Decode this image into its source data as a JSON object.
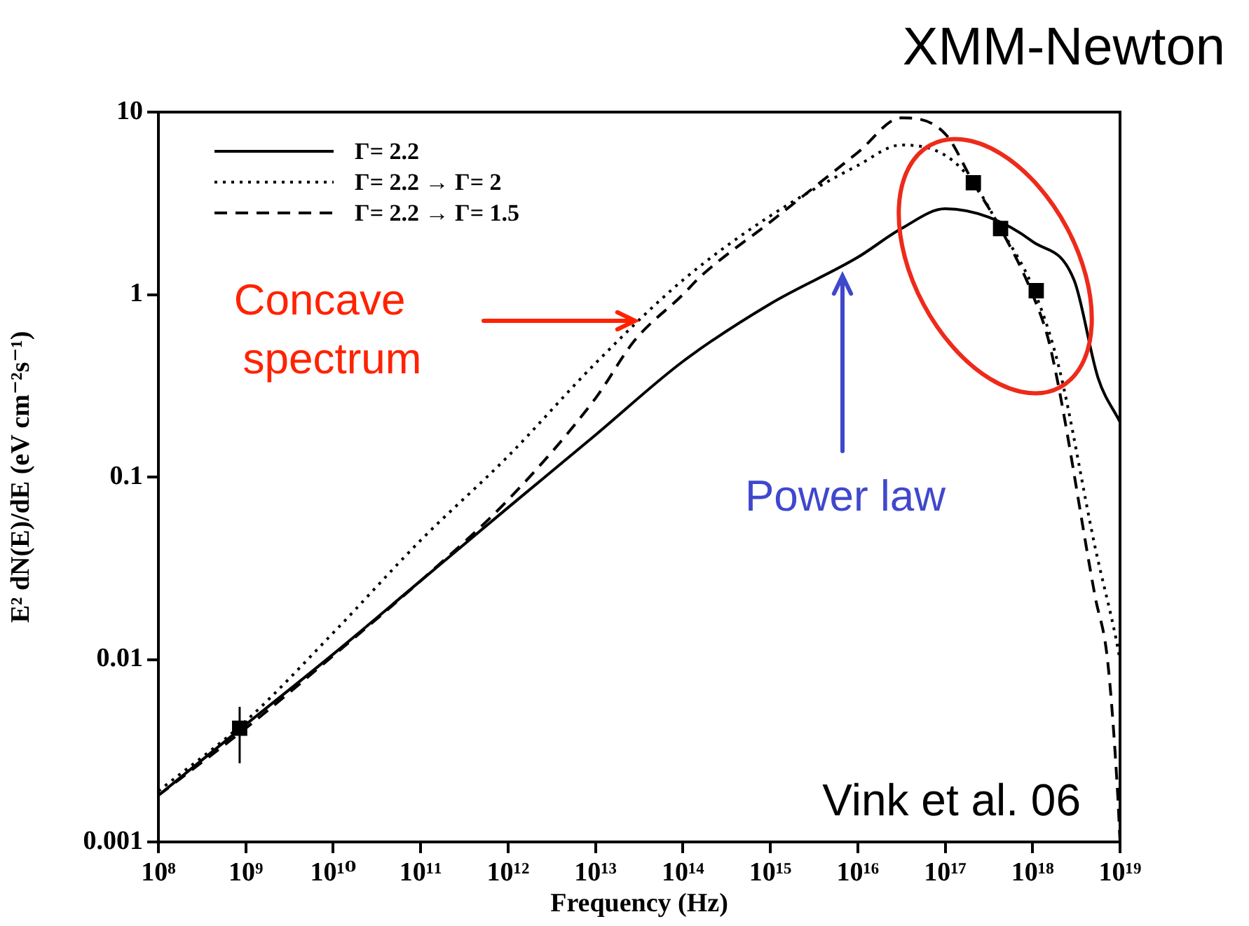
{
  "chart_data": {
    "type": "line",
    "title": "XMM-Newton",
    "xlabel": "Frequency (Hz)",
    "ylabel": "E² dN(E)/dE (eV cm⁻²s⁻¹)",
    "log": "xy",
    "grid": false,
    "legend": "top left",
    "xlim": [
      100000000.0,
      1e+19
    ],
    "ylim": [
      0.001,
      10
    ],
    "xticks": [
      {
        "value": 100000000.0,
        "label": "10⁸"
      },
      {
        "value": 1000000000.0,
        "label": "10⁹"
      },
      {
        "value": 10000000000.0,
        "label": "10¹⁰"
      },
      {
        "value": 100000000000.0,
        "label": "10¹¹"
      },
      {
        "value": 1000000000000.0,
        "label": "10¹²"
      },
      {
        "value": 10000000000000.0,
        "label": "10¹³"
      },
      {
        "value": 100000000000000.0,
        "label": "10¹⁴"
      },
      {
        "value": 1000000000000000.0,
        "label": "10¹⁵"
      },
      {
        "value": 1e+16,
        "label": "10¹⁶"
      },
      {
        "value": 1e+17,
        "label": "10¹⁷"
      },
      {
        "value": 1e+18,
        "label": "10¹⁸"
      },
      {
        "value": 1e+19,
        "label": "10¹⁹"
      }
    ],
    "yticks": [
      0.001,
      0.01,
      0.1,
      1,
      10
    ],
    "series": [
      {
        "name": "Γ= 2.2",
        "color": "#000000",
        "line_style": "solid",
        "marker": "none",
        "x": [
          100000000.0,
          1000000000.0,
          10000000000.0,
          100000000000.0,
          1000000000000.0,
          10000000000000.0,
          100000000000000.0,
          1000000000000000.0,
          1e+16,
          3.16e+16,
          1e+17,
          3.16e+17,
          1e+18,
          3e+18,
          5.6e+18,
          1e+19
        ],
        "values": [
          0.0018,
          0.0044,
          0.0107,
          0.027,
          0.068,
          0.17,
          0.43,
          0.89,
          1.6,
          2.3,
          2.95,
          2.65,
          1.95,
          1.19,
          0.35,
          0.2
        ]
      },
      {
        "name": "Γ= 2.2 → Γ= 2",
        "color": "#000000",
        "line_style": "dotted",
        "marker": "none",
        "x": [
          100000000.0,
          1000000000.0,
          10000000000.0,
          100000000000.0,
          1000000000000.0,
          10000000000000.0,
          100000000000000.0,
          1000000000000000.0,
          1e+16,
          3.16e+16,
          1e+17,
          2.1e+17,
          4.3e+17,
          1e+18,
          2e+18,
          5.2e+18,
          9e+18,
          1e+19
        ],
        "values": [
          0.0019,
          0.0046,
          0.014,
          0.045,
          0.13,
          0.42,
          1.2,
          2.7,
          5.1,
          6.6,
          5.8,
          4.1,
          2.3,
          1.1,
          0.4,
          0.041,
          0.013,
          0.0099
        ]
      },
      {
        "name": "Γ= 2.2 → Γ= 1.5",
        "color": "#000000",
        "line_style": "dashed",
        "marker": "none",
        "x": [
          100000000.0,
          1000000000.0,
          10000000000.0,
          100000000000.0,
          1000000000000.0,
          10000000000000.0,
          28000000000000.0,
          100000000000000.0,
          160000000000000.0,
          1000000000000000.0,
          1e+16,
          3.16e+16,
          1e+17,
          2.1e+17,
          4.3e+17,
          1e+18,
          1.6e+18,
          5.2e+18,
          7.2e+18,
          9.3e+18,
          1e+19
        ],
        "values": [
          0.0018,
          0.0042,
          0.0105,
          0.027,
          0.075,
          0.27,
          0.56,
          1.0,
          1.26,
          2.5,
          6.0,
          9.3,
          7.6,
          4.1,
          2.3,
          1.0,
          0.51,
          0.022,
          0.0099,
          0.002,
          0.001
        ]
      },
      {
        "type": "scatter",
        "color": "#000000",
        "marker": "square",
        "x": [
          850000000.0,
          2.1e+17,
          4.3e+17,
          1.1e+18
        ],
        "values": [
          0.0042,
          4.1,
          2.3,
          1.05
        ],
        "errors": [
          [
            0.0027,
            0.0055
          ],
          null,
          null,
          null
        ]
      }
    ],
    "annotations": [
      "Concave spectrum",
      "Power law",
      "Vink et al. 06"
    ]
  }
}
